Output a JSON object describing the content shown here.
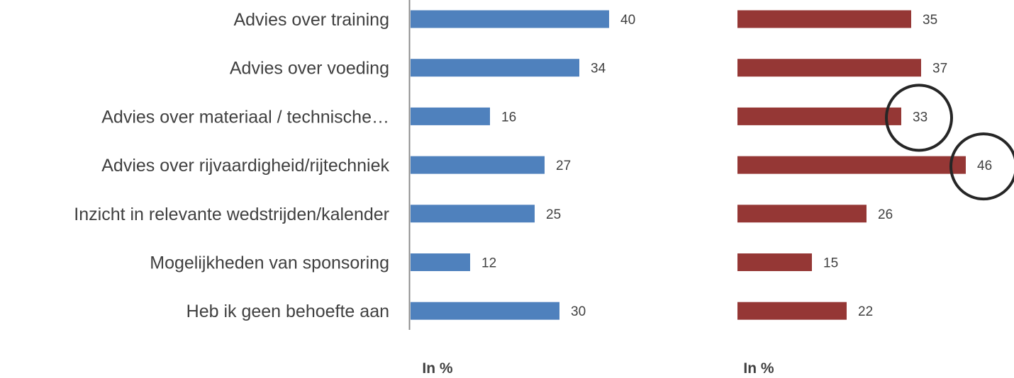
{
  "chart_data": {
    "type": "bar",
    "orientation": "horizontal",
    "categories": [
      "Advies over training",
      "Advies over voeding",
      "Advies over materiaal / technische…",
      "Advies over rijvaardigheid/rijtechniek",
      "Inzicht in relevante wedstrijden/kalender",
      "Mogelijkheden van sponsoring",
      "Heb ik geen behoefte aan"
    ],
    "panels": [
      {
        "xlabel": "In %",
        "color": "#4f81bd",
        "values": [
          40,
          34,
          16,
          27,
          25,
          12,
          30
        ]
      },
      {
        "xlabel": "In %",
        "color": "#953735",
        "values": [
          35,
          37,
          33,
          46,
          26,
          15,
          22
        ],
        "highlighted_categories": [
          "Advies over materiaal / technische…",
          "Advies over rijvaardigheid/rijtechniek"
        ]
      }
    ],
    "grid": false,
    "legend": "none"
  }
}
